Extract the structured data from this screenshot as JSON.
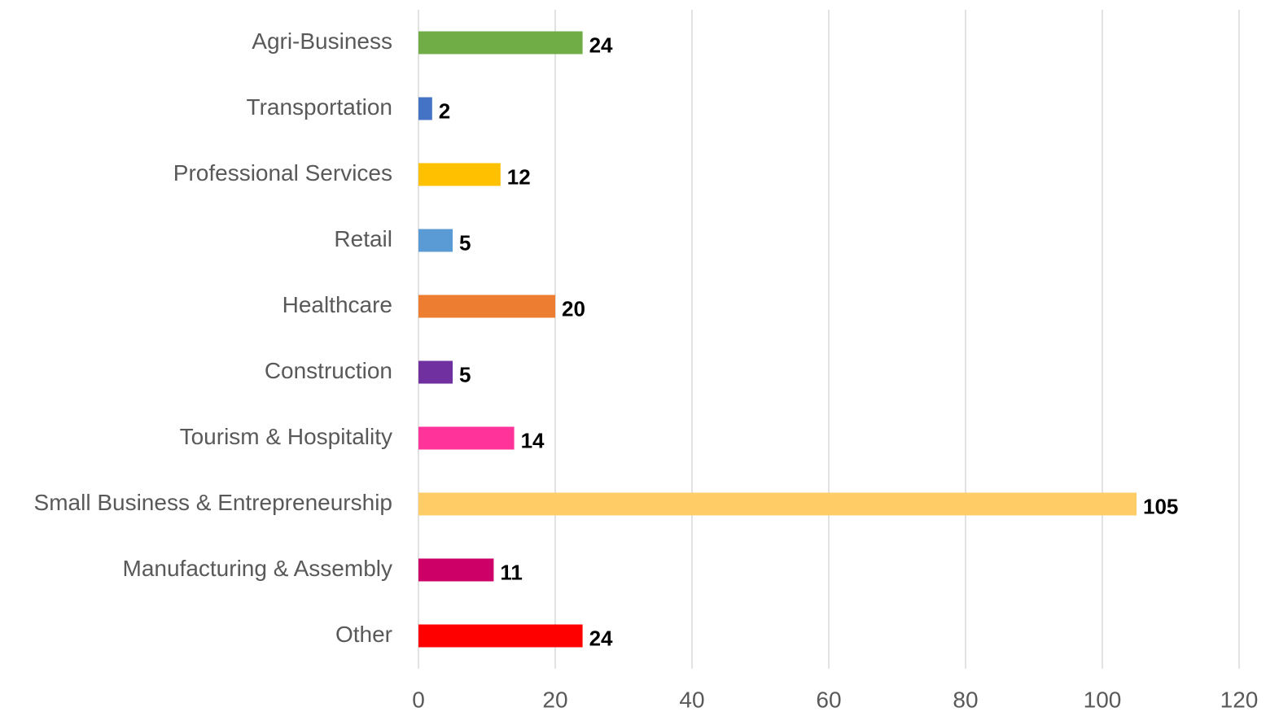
{
  "chart_data": {
    "type": "bar",
    "orientation": "horizontal",
    "categories": [
      "Agri-Business",
      "Transportation",
      "Professional Services",
      "Retail",
      "Healthcare",
      "Construction",
      "Tourism & Hospitality",
      "Small Business & Entrepreneurship",
      "Manufacturing & Assembly",
      "Other"
    ],
    "values": [
      24,
      2,
      12,
      5,
      20,
      5,
      14,
      105,
      11,
      24
    ],
    "colors": [
      "#70ad47",
      "#4472c4",
      "#ffc000",
      "#5b9bd5",
      "#ed7d31",
      "#7030a0",
      "#ff3399",
      "#ffcc66",
      "#cc0066",
      "#ff0000"
    ],
    "xlim": [
      0,
      120
    ],
    "xticks": [
      0,
      20,
      40,
      60,
      80,
      100,
      120
    ],
    "grid": true
  }
}
